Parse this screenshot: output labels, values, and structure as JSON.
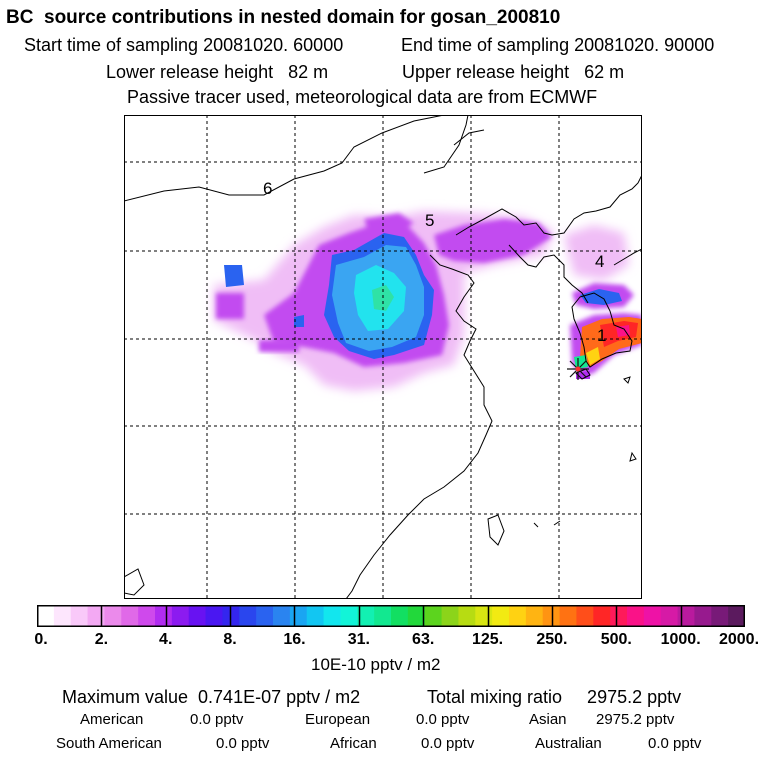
{
  "header": {
    "title": "BC  source contributions in nested domain for gosan_200810",
    "start_time": "Start time of sampling 20081020. 60000",
    "end_time": "End time of sampling 20081020. 90000",
    "lower_height": "Lower release height   82 m",
    "upper_height": "Upper release height   62 m",
    "tracer_note": "Passive tracer used, meteorological data are from ECMWF"
  },
  "map": {
    "region_labels": [
      "6",
      "5",
      "4",
      "1"
    ],
    "receptor_marker": "star-icon"
  },
  "colorbar": {
    "ticks": [
      "0.",
      "2.",
      "4.",
      "8.",
      "16.",
      "31.",
      "63.",
      "125.",
      "250.",
      "500.",
      "1000.",
      "2000."
    ],
    "units": "10E-10 pptv / m2",
    "colors": [
      "#ffffff",
      "#fde6fd",
      "#f9c9f9",
      "#f3a9f3",
      "#eb8aeb",
      "#e069e8",
      "#cf49ec",
      "#b12cf0",
      "#8c1bf0",
      "#6812f2",
      "#4a17f2",
      "#3426ef",
      "#2a46ee",
      "#2a63f0",
      "#2a84f0",
      "#1aa5f2",
      "#12c6f2",
      "#12e6ee",
      "#12f4d8",
      "#12f0b2",
      "#12e890",
      "#12df62",
      "#22d83b",
      "#5cd41e",
      "#8cd41a",
      "#b7dc12",
      "#d8e612",
      "#f2ea12",
      "#ffd212",
      "#ffb412",
      "#ff9412",
      "#ff7212",
      "#ff4e1a",
      "#ff2626",
      "#fe1a5a",
      "#fa1288",
      "#ee12a6",
      "#d61aa6",
      "#b91a9e",
      "#971a8e",
      "#781a78",
      "#5b1a5e"
    ]
  },
  "stats": {
    "max_label": "Maximum value  0.741E-07 pptv / m2",
    "total_label": "Total mixing ratio     2975.2 pptv",
    "american": {
      "label": "American",
      "value": "0.0 pptv"
    },
    "european": {
      "label": "European",
      "value": "0.0 pptv"
    },
    "asian": {
      "label": "Asian",
      "value": "2975.2 pptv"
    },
    "south_american": {
      "label": "South American",
      "value": "0.0 pptv"
    },
    "african": {
      "label": "African",
      "value": "0.0 pptv"
    },
    "australian": {
      "label": "Australian",
      "value": "0.0 pptv"
    }
  }
}
